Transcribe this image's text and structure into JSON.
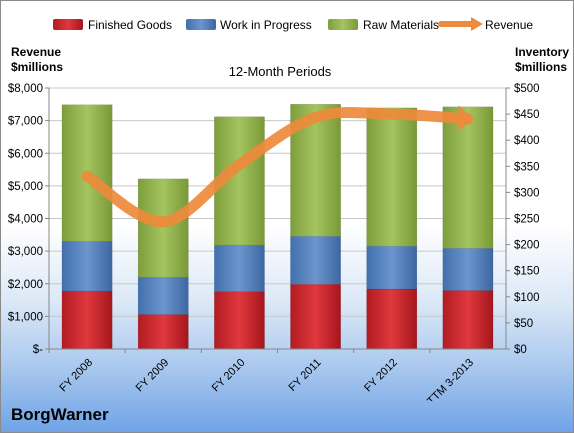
{
  "chart_data": {
    "type": "bar",
    "stacked": true,
    "title": "12-Month Periods",
    "company": "BorgWarner",
    "left_axis_title": [
      "Revenue",
      "$millions"
    ],
    "right_axis_title": [
      "Inventory",
      "$millions"
    ],
    "categories": [
      "FY 2008",
      "FY 2009",
      "FY 2010",
      "FY 2011",
      "FY 2012",
      "TTM 3-2013"
    ],
    "left_axis": {
      "ylim": [
        0,
        8000
      ],
      "ticks": [
        0,
        1000,
        2000,
        3000,
        4000,
        5000,
        6000,
        7000,
        8000
      ],
      "tick_labels": [
        "$-",
        "$1,000",
        "$2,000",
        "$3,000",
        "$4,000",
        "$5,000",
        "$6,000",
        "$7,000",
        "$8,000"
      ]
    },
    "right_axis": {
      "ylim": [
        0,
        500
      ],
      "ticks": [
        0,
        50,
        100,
        150,
        200,
        250,
        300,
        350,
        400,
        450,
        500
      ],
      "tick_labels": [
        "$0",
        "$50",
        "$100",
        "$150",
        "$200",
        "$250",
        "$300",
        "$350",
        "$400",
        "$450",
        "$500"
      ]
    },
    "series": [
      {
        "name": "Finished Goods",
        "kind": "bar",
        "axis": "right",
        "color": "#c0262b",
        "values": [
          111,
          66,
          110,
          124,
          115,
          112
        ]
      },
      {
        "name": "Work in Progress",
        "kind": "bar",
        "axis": "right",
        "color": "#4f7bb8",
        "values": [
          95,
          71,
          89,
          92,
          82,
          81
        ]
      },
      {
        "name": "Raw Materials",
        "kind": "bar",
        "axis": "right",
        "color": "#8eb04a",
        "values": [
          262,
          189,
          246,
          253,
          265,
          271
        ]
      },
      {
        "name": "Revenue",
        "kind": "line",
        "axis": "left",
        "color": "#ee8a3b",
        "values": [
          5300,
          3900,
          5650,
          7100,
          7200,
          7050
        ]
      }
    ],
    "grid": true,
    "legend_position": "top"
  }
}
